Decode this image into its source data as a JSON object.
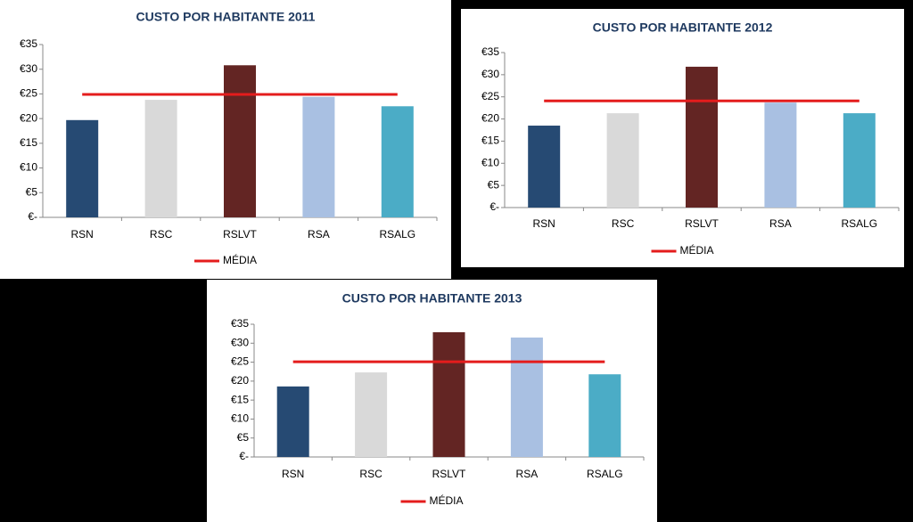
{
  "chart_data": [
    {
      "type": "bar",
      "title": "CUSTO POR HABITANTE 2011",
      "categories": [
        "RSN",
        "RSC",
        "RSLVT",
        "RSA",
        "RSALG"
      ],
      "values": [
        19.7,
        23.8,
        30.8,
        24.4,
        22.5
      ],
      "colors": [
        "#264a73",
        "#d9d9d9",
        "#632523",
        "#a9c0e2",
        "#4bacc6"
      ],
      "average": {
        "name": "MÉDIA",
        "color": "#e41c1c",
        "value": 24.9
      },
      "ylim": [
        0,
        35
      ],
      "yticks": [
        {
          "value": 0,
          "label": "€-"
        },
        {
          "value": 5,
          "label": "€5"
        },
        {
          "value": 10,
          "label": "€10"
        },
        {
          "value": 15,
          "label": "€15"
        },
        {
          "value": 20,
          "label": "€20"
        },
        {
          "value": 25,
          "label": "€25"
        },
        {
          "value": 30,
          "label": "€30"
        },
        {
          "value": 35,
          "label": "€35"
        }
      ]
    },
    {
      "type": "bar",
      "title": "CUSTO POR HABITANTE 2012",
      "categories": [
        "RSN",
        "RSC",
        "RSLVT",
        "RSA",
        "RSALG"
      ],
      "values": [
        18.5,
        21.3,
        31.8,
        23.7,
        21.3
      ],
      "colors": [
        "#264a73",
        "#d9d9d9",
        "#632523",
        "#a9c0e2",
        "#4bacc6"
      ],
      "average": {
        "name": "MÉDIA",
        "color": "#e41c1c",
        "value": 24.1
      },
      "ylim": [
        0,
        35
      ],
      "yticks": [
        {
          "value": 0,
          "label": "€-"
        },
        {
          "value": 5,
          "label": "€5"
        },
        {
          "value": 10,
          "label": "€10"
        },
        {
          "value": 15,
          "label": "€15"
        },
        {
          "value": 20,
          "label": "€20"
        },
        {
          "value": 25,
          "label": "€25"
        },
        {
          "value": 30,
          "label": "€30"
        },
        {
          "value": 35,
          "label": "€35"
        }
      ]
    },
    {
      "type": "bar",
      "title": "CUSTO POR HABITANTE 2013",
      "categories": [
        "RSN",
        "RSC",
        "RSLVT",
        "RSA",
        "RSALG"
      ],
      "values": [
        18.6,
        22.3,
        32.9,
        31.5,
        21.8
      ],
      "colors": [
        "#264a73",
        "#d9d9d9",
        "#632523",
        "#a9c0e2",
        "#4bacc6"
      ],
      "average": {
        "name": "MÉDIA",
        "color": "#e41c1c",
        "value": 25.1
      },
      "ylim": [
        0,
        35
      ],
      "yticks": [
        {
          "value": 0,
          "label": "€-"
        },
        {
          "value": 5,
          "label": "€5"
        },
        {
          "value": 10,
          "label": "€10"
        },
        {
          "value": 15,
          "label": "€15"
        },
        {
          "value": 20,
          "label": "€20"
        },
        {
          "value": 25,
          "label": "€25"
        },
        {
          "value": 30,
          "label": "€30"
        },
        {
          "value": 35,
          "label": "€35"
        }
      ]
    }
  ]
}
